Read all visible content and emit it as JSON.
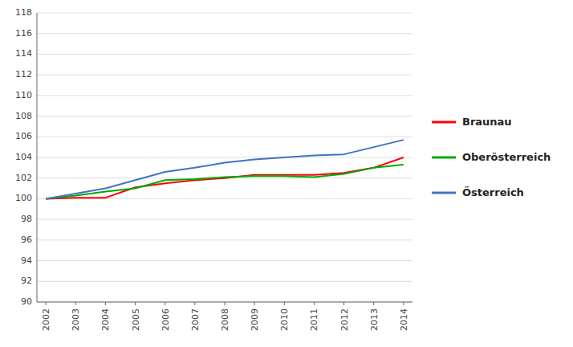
{
  "chart_data": {
    "type": "line",
    "x": [
      2002,
      2003,
      2004,
      2005,
      2006,
      2007,
      2008,
      2009,
      2010,
      2011,
      2012,
      2013,
      2014
    ],
    "series": [
      {
        "name": "Braunau",
        "color": "#ff0000",
        "values": [
          100.0,
          100.1,
          100.1,
          101.1,
          101.5,
          101.8,
          102.0,
          102.3,
          102.3,
          102.3,
          102.5,
          103.0,
          104.0
        ]
      },
      {
        "name": "Oberösterreich",
        "color": "#00aa00",
        "values": [
          100.0,
          100.3,
          100.7,
          101.0,
          101.8,
          101.9,
          102.1,
          102.2,
          102.2,
          102.1,
          102.4,
          103.0,
          103.3
        ]
      },
      {
        "name": "Österreich",
        "color": "#4472c4",
        "values": [
          100.0,
          100.5,
          101.0,
          101.8,
          102.6,
          103.0,
          103.5,
          103.8,
          104.0,
          104.2,
          104.3,
          105.0,
          105.7
        ]
      }
    ],
    "xlim": [
      2001.7,
      2014.3
    ],
    "xticks": [
      2002,
      2003,
      2004,
      2005,
      2006,
      2007,
      2008,
      2009,
      2010,
      2011,
      2012,
      2013,
      2014
    ],
    "ylim": [
      90,
      118
    ],
    "yticks": [
      90,
      92,
      94,
      96,
      98,
      100,
      102,
      104,
      106,
      108,
      110,
      112,
      114,
      116,
      118
    ],
    "grid": true,
    "legend": "right"
  }
}
